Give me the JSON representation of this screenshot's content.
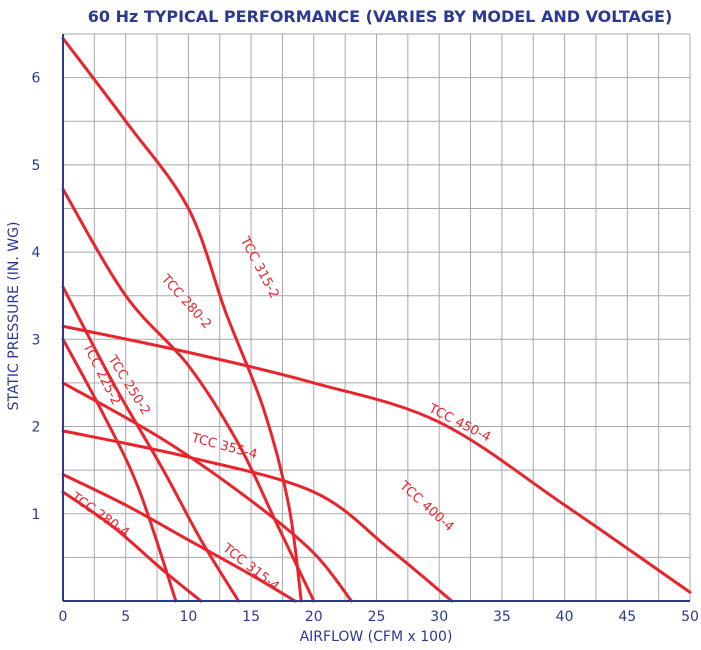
{
  "chart_data": {
    "type": "line",
    "title": "60 Hz TYPICAL PERFORMANCE (VARIES BY MODEL AND VOLTAGE)",
    "xlabel": "AIRFLOW (CFM x 100)",
    "ylabel": "STATIC PRESSURE (IN. WG)",
    "xlim": [
      0,
      50
    ],
    "ylim": [
      0,
      6.5
    ],
    "xticks": [
      "0",
      "5",
      "10",
      "15",
      "20",
      "25",
      "30",
      "35",
      "40",
      "45",
      "50"
    ],
    "yticks": [
      "1",
      "2",
      "3",
      "4",
      "5",
      "6"
    ],
    "grid": true,
    "colors": {
      "axis": "#2b3990",
      "curve": "#e8242c",
      "grid": "#a7a9ac"
    },
    "series": [
      {
        "name": "TCC 315-2",
        "x": [
          0,
          5,
          10,
          13,
          16,
          18,
          19
        ],
        "y": [
          6.45,
          5.5,
          4.5,
          3.3,
          2.2,
          1.1,
          0
        ]
      },
      {
        "name": "TCC 280-2",
        "x": [
          0,
          5,
          10,
          14,
          17,
          20
        ],
        "y": [
          4.72,
          3.5,
          2.7,
          1.8,
          0.9,
          0
        ]
      },
      {
        "name": "TCC 450-4",
        "x": [
          0,
          10,
          20,
          30,
          40,
          50
        ],
        "y": [
          3.15,
          2.85,
          2.5,
          2.05,
          1.1,
          0.1
        ]
      },
      {
        "name": "TCC 250-2",
        "x": [
          0,
          4,
          8,
          11,
          14
        ],
        "y": [
          3.6,
          2.5,
          1.5,
          0.7,
          0
        ]
      },
      {
        "name": "TCC 225-2",
        "x": [
          0,
          3,
          6,
          9
        ],
        "y": [
          3.0,
          2.2,
          1.3,
          0
        ]
      },
      {
        "name": "TCC 355-4",
        "x": [
          0,
          8,
          15,
          20,
          23
        ],
        "y": [
          2.5,
          1.85,
          1.15,
          0.55,
          0
        ]
      },
      {
        "name": "TCC 400-4",
        "x": [
          0,
          10,
          20,
          26,
          31
        ],
        "y": [
          1.95,
          1.65,
          1.25,
          0.6,
          0
        ]
      },
      {
        "name": "TCC 315-4",
        "x": [
          0,
          5,
          10,
          15,
          18.5
        ],
        "y": [
          1.45,
          1.1,
          0.7,
          0.3,
          0
        ]
      },
      {
        "name": "TCC 280-4",
        "x": [
          0,
          4,
          8,
          11
        ],
        "y": [
          1.25,
          0.85,
          0.35,
          0
        ]
      }
    ]
  }
}
